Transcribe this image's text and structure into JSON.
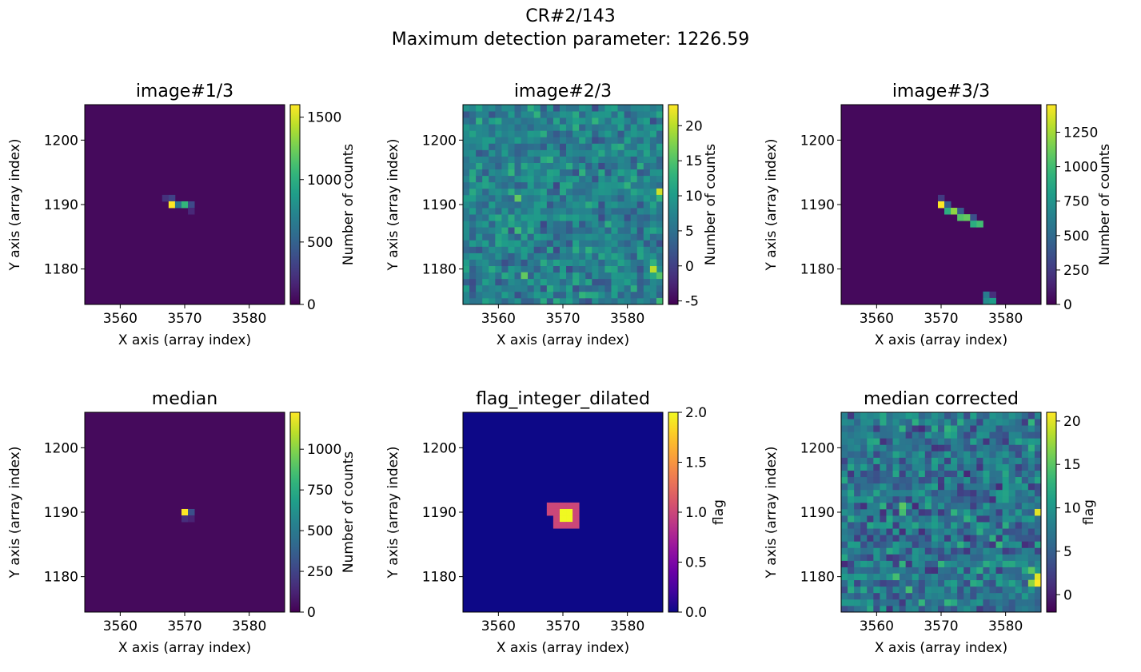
{
  "figure": {
    "title_line1": "CR#2/143",
    "title_line2": "Maximum detection parameter: 1226.59"
  },
  "chart_data": [
    {
      "type": "heatmap",
      "title": "image#1/3",
      "xlabel": "X axis (array index)",
      "ylabel": "Y axis (array index)",
      "xlim": [
        3554.5,
        3585.5
      ],
      "ylim": [
        1174.5,
        1205.5
      ],
      "xticks": [
        3560,
        3570,
        3580
      ],
      "yticks": [
        1180,
        1190,
        1200
      ],
      "colormap": "viridis",
      "colorbar": {
        "label": "Number of counts",
        "range": [
          0,
          1600
        ],
        "ticks": [
          0,
          500,
          1000,
          1500
        ]
      },
      "background_value": 40,
      "pixels": [
        [
          3567,
          1191,
          230
        ],
        [
          3568,
          1191,
          320
        ],
        [
          3568,
          1190,
          1600
        ],
        [
          3569,
          1190,
          620
        ],
        [
          3570,
          1190,
          1050
        ],
        [
          3571,
          1190,
          360
        ],
        [
          3571,
          1189,
          180
        ]
      ]
    },
    {
      "type": "heatmap",
      "title": "image#2/3",
      "xlabel": "X axis (array index)",
      "ylabel": "Y axis (array index)",
      "xlim": [
        3554.5,
        3585.5
      ],
      "ylim": [
        1174.5,
        1205.5
      ],
      "xticks": [
        3560,
        3570,
        3580
      ],
      "yticks": [
        1180,
        1190,
        1200
      ],
      "colormap": "viridis",
      "colorbar": {
        "label": "Number of counts",
        "range": [
          -5.5,
          23
        ],
        "ticks": [
          -5,
          0,
          5,
          10,
          15,
          20
        ]
      },
      "noise": {
        "mean": 7,
        "amplitude": 5,
        "seed": 2
      },
      "pixels": [
        [
          3563,
          1191,
          16
        ],
        [
          3585,
          1192,
          21
        ],
        [
          3585,
          1191,
          13
        ],
        [
          3584,
          1180,
          20
        ],
        [
          3585,
          1179,
          15
        ],
        [
          3585,
          1175,
          14
        ],
        [
          3563,
          1186,
          14
        ],
        [
          3564,
          1179,
          16
        ],
        [
          3584,
          1181,
          13
        ]
      ]
    },
    {
      "type": "heatmap",
      "title": "image#3/3",
      "xlabel": "X axis (array index)",
      "ylabel": "Y axis (array index)",
      "xlim": [
        3554.5,
        3585.5
      ],
      "ylim": [
        1174.5,
        1205.5
      ],
      "xticks": [
        3560,
        3570,
        3580
      ],
      "yticks": [
        1180,
        1190,
        1200
      ],
      "colormap": "viridis",
      "colorbar": {
        "label": "Number of counts",
        "range": [
          0,
          1450
        ],
        "ticks": [
          0,
          250,
          500,
          750,
          1000,
          1250
        ]
      },
      "background_value": 35,
      "pixels": [
        [
          3570,
          1191,
          250
        ],
        [
          3570,
          1190,
          1450
        ],
        [
          3571,
          1190,
          420
        ],
        [
          3571,
          1189,
          900
        ],
        [
          3572,
          1189,
          1200
        ],
        [
          3573,
          1189,
          420
        ],
        [
          3573,
          1188,
          1050
        ],
        [
          3574,
          1188,
          1100
        ],
        [
          3575,
          1188,
          350
        ],
        [
          3575,
          1187,
          900
        ],
        [
          3576,
          1187,
          1000
        ],
        [
          3577,
          1176,
          600
        ],
        [
          3578,
          1176,
          200
        ],
        [
          3577,
          1175,
          700
        ],
        [
          3578,
          1175,
          800
        ]
      ]
    },
    {
      "type": "heatmap",
      "title": "median",
      "xlabel": "X axis (array index)",
      "ylabel": "Y axis (array index)",
      "xlim": [
        3554.5,
        3585.5
      ],
      "ylim": [
        1174.5,
        1205.5
      ],
      "xticks": [
        3560,
        3570,
        3580
      ],
      "yticks": [
        1180,
        1190,
        1200
      ],
      "colormap": "viridis",
      "colorbar": {
        "label": "Number of counts",
        "range": [
          0,
          1226.59
        ],
        "ticks": [
          0,
          250,
          500,
          750,
          1000
        ]
      },
      "background_value": 30,
      "pixels": [
        [
          3570,
          1190,
          1226.59
        ],
        [
          3571,
          1190,
          300
        ],
        [
          3570,
          1189,
          160
        ],
        [
          3571,
          1189,
          120
        ]
      ]
    },
    {
      "type": "heatmap",
      "title": "flag_integer_dilated",
      "xlabel": "X axis (array index)",
      "ylabel": "Y axis (array index)",
      "xlim": [
        3554.5,
        3585.5
      ],
      "ylim": [
        1174.5,
        1205.5
      ],
      "xticks": [
        3560,
        3570,
        3580
      ],
      "yticks": [
        1180,
        1190,
        1200
      ],
      "colormap": "plasma",
      "colorbar": {
        "label": "flag",
        "range": [
          0,
          2
        ],
        "ticks": [
          0.0,
          0.5,
          1.0,
          1.5,
          2.0
        ]
      },
      "background_value": 0,
      "pixels": [
        [
          3568,
          1191,
          1
        ],
        [
          3569,
          1191,
          1
        ],
        [
          3570,
          1191,
          1
        ],
        [
          3571,
          1191,
          1
        ],
        [
          3572,
          1191,
          1
        ],
        [
          3568,
          1190,
          1
        ],
        [
          3569,
          1190,
          1
        ],
        [
          3570,
          1190,
          2
        ],
        [
          3571,
          1190,
          2
        ],
        [
          3572,
          1190,
          1
        ],
        [
          3569,
          1189,
          1
        ],
        [
          3570,
          1189,
          2
        ],
        [
          3571,
          1189,
          2
        ],
        [
          3572,
          1189,
          1
        ],
        [
          3569,
          1188,
          1
        ],
        [
          3570,
          1188,
          1
        ],
        [
          3571,
          1188,
          1
        ],
        [
          3572,
          1188,
          1
        ]
      ]
    },
    {
      "type": "heatmap",
      "title": "median corrected",
      "xlabel": "X axis (array index)",
      "ylabel": "Y axis (array index)",
      "xlim": [
        3554.5,
        3585.5
      ],
      "ylim": [
        1174.5,
        1205.5
      ],
      "xticks": [
        3560,
        3570,
        3580
      ],
      "yticks": [
        1180,
        1190,
        1200
      ],
      "colormap": "viridis",
      "colorbar": {
        "label": "flag",
        "range": [
          -2,
          21
        ],
        "ticks": [
          0,
          5,
          10,
          15,
          20
        ]
      },
      "noise": {
        "mean": 7,
        "amplitude": 5,
        "seed": 6
      },
      "pixels": [
        [
          3564,
          1191,
          15
        ],
        [
          3564,
          1190,
          14
        ],
        [
          3585,
          1190,
          20
        ],
        [
          3584,
          1179,
          17
        ],
        [
          3585,
          1180,
          20
        ],
        [
          3585,
          1179,
          21
        ],
        [
          3584,
          1181,
          15
        ],
        [
          3563,
          1180,
          14
        ],
        [
          3565,
          1178,
          14
        ]
      ]
    }
  ]
}
